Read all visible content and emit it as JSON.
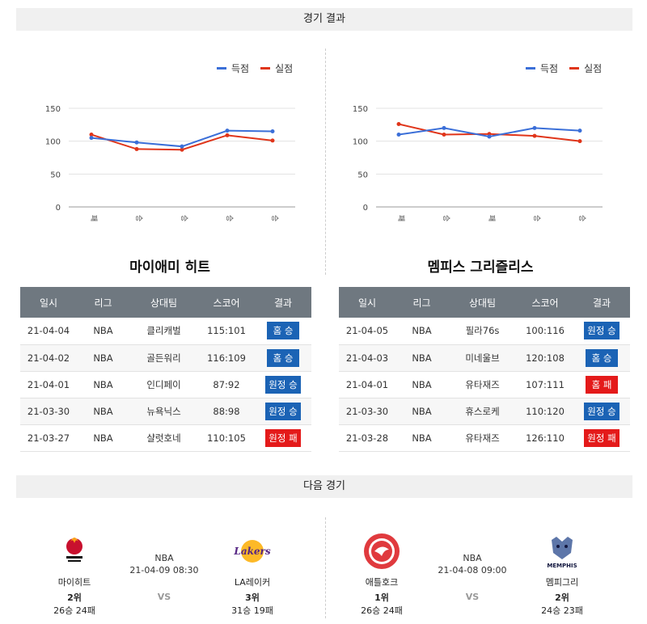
{
  "section_results": "경기 결과",
  "section_next": "다음 경기",
  "legend": {
    "scored": "득점",
    "conceded": "실점",
    "scored_color": "#3b6fd8",
    "conceded_color": "#e0351a"
  },
  "left": {
    "team": "마이애미 히트",
    "chart_data": {
      "type": "line",
      "categories": [
        "패",
        "승",
        "승",
        "승",
        "승"
      ],
      "series": [
        {
          "name": "득점",
          "values": [
            105,
            98,
            92,
            116,
            115
          ]
        },
        {
          "name": "실점",
          "values": [
            110,
            88,
            87,
            109,
            101
          ]
        }
      ],
      "yticks": [
        "150",
        "100",
        "50",
        "0"
      ],
      "ylim": [
        0,
        150
      ]
    },
    "table": {
      "headers": [
        "일시",
        "리그",
        "상대팀",
        "스코어",
        "결과"
      ],
      "rows": [
        {
          "date": "21-04-04",
          "league": "NBA",
          "opp": "클리캐벌",
          "score": "115:101",
          "result": "홈 승",
          "type": "win"
        },
        {
          "date": "21-04-02",
          "league": "NBA",
          "opp": "골든워리",
          "score": "116:109",
          "result": "홈 승",
          "type": "win"
        },
        {
          "date": "21-04-01",
          "league": "NBA",
          "opp": "인디페이",
          "score": "87:92",
          "result": "원정 승",
          "type": "win"
        },
        {
          "date": "21-03-30",
          "league": "NBA",
          "opp": "뉴욕닉스",
          "score": "88:98",
          "result": "원정 승",
          "type": "win"
        },
        {
          "date": "21-03-27",
          "league": "NBA",
          "opp": "샬럿호네",
          "score": "110:105",
          "result": "원정 패",
          "type": "loss"
        }
      ]
    }
  },
  "right": {
    "team": "멤피스 그리즐리스",
    "chart_data": {
      "type": "line",
      "categories": [
        "패",
        "승",
        "패",
        "승",
        "승"
      ],
      "series": [
        {
          "name": "득점",
          "values": [
            110,
            120,
            107,
            120,
            116
          ]
        },
        {
          "name": "실점",
          "values": [
            126,
            110,
            111,
            108,
            100
          ]
        }
      ],
      "yticks": [
        "150",
        "100",
        "50",
        "0"
      ],
      "ylim": [
        0,
        150
      ]
    },
    "table": {
      "headers": [
        "일시",
        "리그",
        "상대팀",
        "스코어",
        "결과"
      ],
      "rows": [
        {
          "date": "21-04-05",
          "league": "NBA",
          "opp": "필라76s",
          "score": "100:116",
          "result": "원정 승",
          "type": "win"
        },
        {
          "date": "21-04-03",
          "league": "NBA",
          "opp": "미네울브",
          "score": "120:108",
          "result": "홈 승",
          "type": "win"
        },
        {
          "date": "21-04-01",
          "league": "NBA",
          "opp": "유타재즈",
          "score": "107:111",
          "result": "홈 패",
          "type": "loss"
        },
        {
          "date": "21-03-30",
          "league": "NBA",
          "opp": "휴스로케",
          "score": "110:120",
          "result": "원정 승",
          "type": "win"
        },
        {
          "date": "21-03-28",
          "league": "NBA",
          "opp": "유타재즈",
          "score": "126:110",
          "result": "원정 패",
          "type": "loss"
        }
      ]
    }
  },
  "next": [
    {
      "league": "NBA",
      "datetime": "21-04-09 08:30",
      "vs": "VS",
      "home": {
        "name": "마이히트",
        "rank": "2위",
        "record": "26승 24패",
        "logo": "miami-heat-logo"
      },
      "away": {
        "name": "LA레이커",
        "rank": "3위",
        "record": "31승 19패",
        "logo": "lakers-logo",
        "logo_text": "Lakers"
      }
    },
    {
      "league": "NBA",
      "datetime": "21-04-08 09:00",
      "vs": "VS",
      "home": {
        "name": "애틀호크",
        "rank": "1위",
        "record": "26승 24패",
        "logo": "atlanta-hawks-logo"
      },
      "away": {
        "name": "멤피그리",
        "rank": "2위",
        "record": "24승 23패",
        "logo": "memphis-grizzlies-logo",
        "logo_text": "MEMPHIS"
      }
    }
  ]
}
